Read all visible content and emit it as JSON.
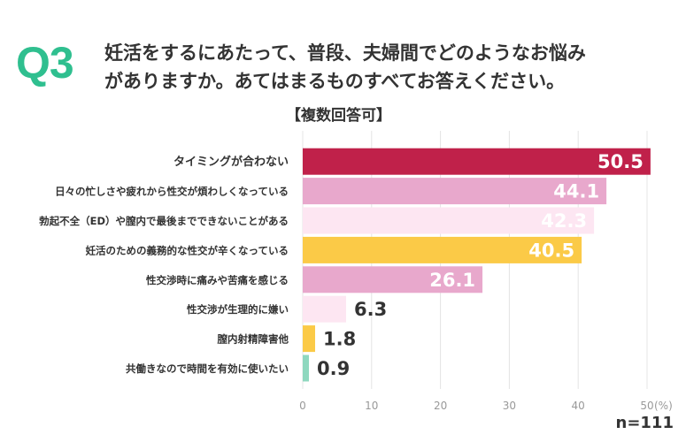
{
  "header": {
    "q_label": "Q3",
    "question_line1": "妊活をするにあたって、普段、夫婦間でどのようなお悩み",
    "question_line2": "がありますか。あてはまるものすべてお答えください。",
    "note": "【複数回答可】"
  },
  "sample": "n=111",
  "chart_data": {
    "type": "bar",
    "orientation": "horizontal",
    "categories": [
      "タイミングが合わない",
      "日々の忙しさや疲れから性交が煩わしくなっている",
      "勃起不全（ED）や膣内で最後までできないことがある",
      "妊活のための義務的な性交が辛くなっている",
      "性交渉時に痛みや苦痛を感じる",
      "性交渉が生理的に嫌い",
      "膣内射精障害他",
      "共働きなので時間を有効に使いたい"
    ],
    "values": [
      50.5,
      44.1,
      42.3,
      40.5,
      26.1,
      6.3,
      1.8,
      0.9
    ],
    "value_labels": [
      "50.5",
      "44.1",
      "42.3",
      "40.5",
      "26.1",
      "6.3",
      "1.8",
      "0.9"
    ],
    "colors": [
      "#c0214a",
      "#e8a8cc",
      "#fde6f2",
      "#fbca47",
      "#e8a8cc",
      "#fde6f2",
      "#fbca47",
      "#8fd8bf"
    ],
    "xlim": [
      0,
      50
    ],
    "xticks": [
      "0",
      "10",
      "20",
      "30",
      "40",
      "50"
    ],
    "unit": "(%)",
    "grid": true
  }
}
